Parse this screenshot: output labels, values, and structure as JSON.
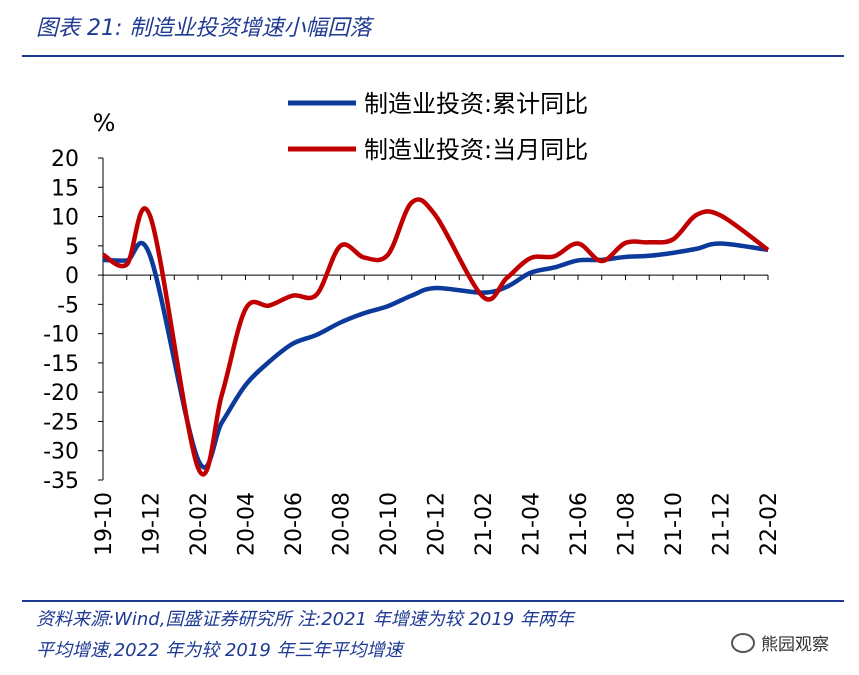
{
  "header": {
    "title": "图表 21:  制造业投资增速小幅回落"
  },
  "footer": {
    "note_line1": "资料来源:Wind,国盛证券研究所  注:2021 年增速为较 2019 年两年",
    "note_line2": "平均增速,2022 年为较 2019 年三年平均增速",
    "watermark": "熊园观察",
    "watermark_icon": "wechat-icon"
  },
  "colors": {
    "blue": "#0b3a9b",
    "red": "#c00000",
    "axis": "#000000",
    "accent": "#1f3a93"
  },
  "chart_data": {
    "type": "line",
    "ylabel": "%",
    "ylim": [
      -35,
      20
    ],
    "yticks": [
      20,
      15,
      10,
      5,
      0,
      -5,
      -10,
      -15,
      -20,
      -25,
      -30,
      -35
    ],
    "categories": [
      "19-10",
      "19-11",
      "19-12",
      "20-01",
      "20-02",
      "20-03",
      "20-04",
      "20-05",
      "20-06",
      "20-07",
      "20-08",
      "20-09",
      "20-10",
      "20-11",
      "20-12",
      "21-01",
      "21-02",
      "21-03",
      "21-04",
      "21-05",
      "21-06",
      "21-07",
      "21-08",
      "21-09",
      "21-10",
      "21-11",
      "21-12",
      "22-01",
      "22-02"
    ],
    "xticks": [
      "19-10",
      "19-12",
      "20-02",
      "20-04",
      "20-06",
      "20-08",
      "20-10",
      "20-12",
      "21-02",
      "21-04",
      "21-06",
      "21-08",
      "21-10",
      "21-12",
      "22-02"
    ],
    "legend_position": "top-center",
    "series": [
      {
        "name": "制造业投资:累计同比",
        "color": "#0b3a9b",
        "values": [
          2.6,
          2.5,
          3.1,
          null,
          -31.5,
          -25.2,
          -18.8,
          -14.8,
          -11.7,
          -10.2,
          -8.1,
          -6.5,
          -5.3,
          -3.5,
          -2.2,
          null,
          -3.0,
          -2.0,
          0.4,
          1.3,
          2.5,
          2.6,
          3.1,
          3.3,
          3.8,
          4.5,
          5.4,
          null,
          4.3
        ]
      },
      {
        "name": "制造业投资:当月同比",
        "color": "#c00000",
        "values": [
          3.5,
          1.8,
          9.9,
          null,
          -32.9,
          -20.5,
          -5.8,
          -5.2,
          -3.5,
          -3.3,
          5.0,
          3.0,
          3.5,
          12.4,
          10.2,
          null,
          -3.7,
          -0.5,
          2.9,
          3.2,
          5.4,
          2.4,
          5.5,
          5.6,
          6.1,
          10.3,
          10.2,
          null,
          4.3
        ]
      }
    ]
  }
}
